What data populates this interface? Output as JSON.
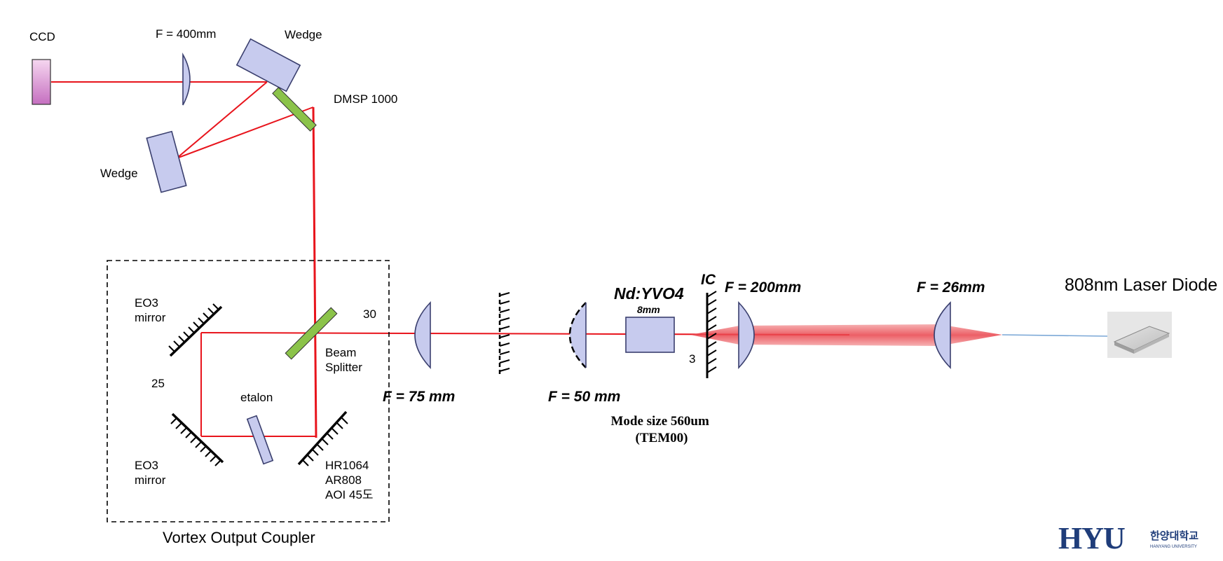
{
  "labels": {
    "ccd": "CCD",
    "lens_f400": "F = 400mm",
    "wedge_top": "Wedge",
    "wedge_left": "Wedge",
    "dmsp": "DMSP 1000",
    "eo3_top_line1": "EO3",
    "eo3_top_line2": "mirror",
    "eo3_bot_line1": "EO3",
    "eo3_bot_line2": "mirror",
    "num_25": "25",
    "num_30": "30",
    "num_3": "3",
    "etalon": "etalon",
    "beam_splitter_line1": "Beam",
    "beam_splitter_line2": "Splitter",
    "hr_line1": "HR1064",
    "hr_line2": "AR808",
    "hr_line3": "AOI 45도",
    "vortex_output_coupler": "Vortex Output Coupler",
    "f75": "F = 75 mm",
    "f50": "F = 50 mm",
    "crystal": "Nd:YVO4",
    "crystal_length": "8mm",
    "ic": "IC",
    "f200": "F = 200mm",
    "f26": "F = 26mm",
    "laser_diode": "808nm Laser Diode",
    "mode_size_line1": "Mode size 560um",
    "mode_size_line2": "(TEM00)",
    "logo_text": "HYU",
    "logo_korean": "한양대학교",
    "logo_english": "HANYANG UNIVERSITY"
  },
  "colors": {
    "beam": "#e8141c",
    "lens_fill": "#c7cbee",
    "dmsp_fill": "#8bc34a",
    "ccd_gradient_top": "#f6d7f0",
    "ccd_gradient_bottom": "#c56fc0",
    "logo": "#1f3d7a"
  }
}
